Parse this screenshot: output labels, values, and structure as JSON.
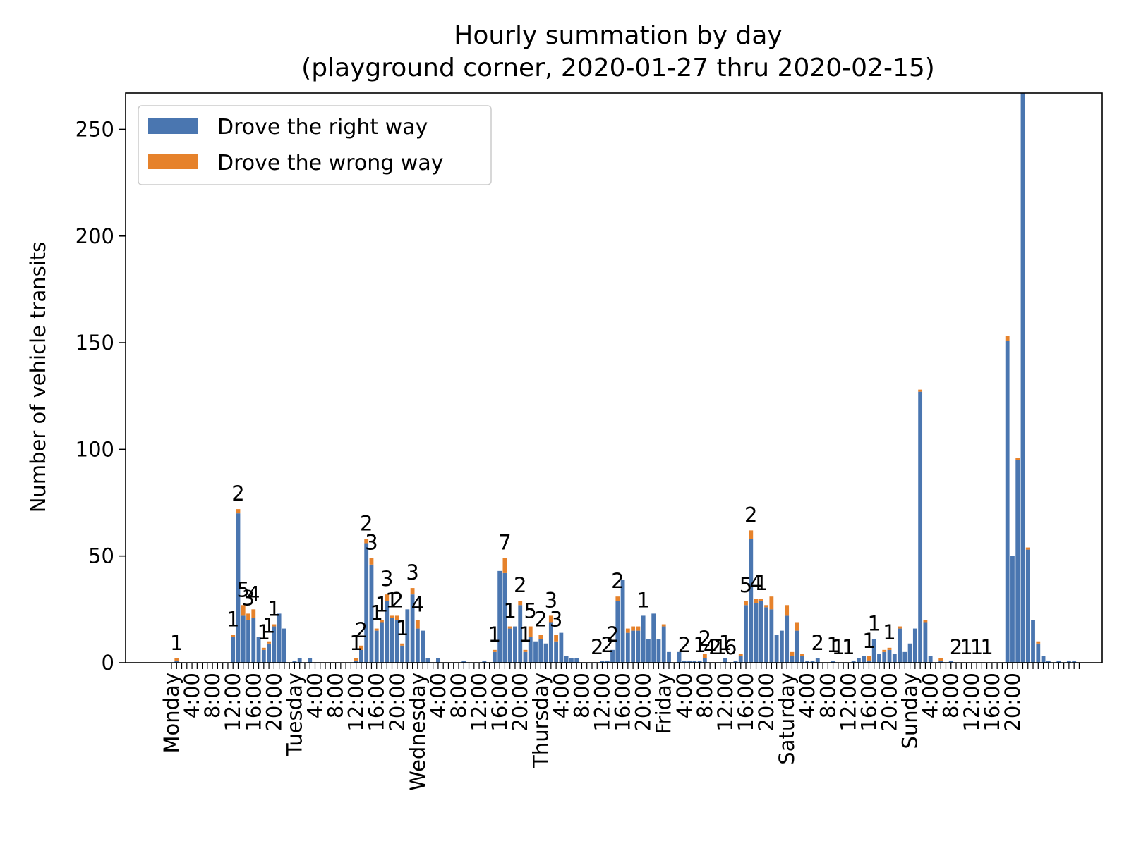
{
  "chart_data": {
    "type": "bar",
    "stacked": true,
    "title": "Hourly summation by day",
    "subtitle": "(playground corner, 2020-01-27 thru 2020-02-15)",
    "xlabel": "",
    "ylabel": "Number of vehicle transits",
    "ylim": [
      0,
      267
    ],
    "yticks": [
      0,
      50,
      100,
      150,
      200,
      250
    ],
    "grid": false,
    "legend_position": "top-left",
    "colors": {
      "right": "#4a76b0",
      "wrong": "#e6822b"
    },
    "days": [
      "Monday",
      "Tuesday",
      "Wednesday",
      "Thursday",
      "Friday",
      "Saturday",
      "Sunday"
    ],
    "hour_labels": [
      "4:00",
      "8:00",
      "12:00",
      "16:00",
      "20:00"
    ],
    "series": [
      {
        "name": "Drove the right way",
        "values": [
          0,
          1,
          0,
          0,
          0,
          0,
          0,
          0,
          0,
          0,
          0,
          0,
          12,
          70,
          22,
          20,
          21,
          12,
          6,
          9,
          17,
          23,
          16,
          0,
          1,
          2,
          0,
          2,
          0,
          0,
          0,
          0,
          0,
          0,
          0,
          0,
          1,
          6,
          56,
          46,
          15,
          19,
          29,
          21,
          20,
          8,
          25,
          32,
          16,
          15,
          2,
          0,
          2,
          0,
          0,
          0,
          0,
          1,
          0,
          0,
          0,
          1,
          0,
          5,
          43,
          42,
          16,
          17,
          27,
          5,
          12,
          10,
          11,
          9,
          19,
          10,
          14,
          3,
          2,
          2,
          0,
          0,
          0,
          0,
          1,
          1,
          6,
          29,
          39,
          14,
          15,
          15,
          22,
          11,
          23,
          11,
          17,
          5,
          0,
          5,
          1,
          1,
          1,
          1,
          2,
          0,
          0,
          0,
          2,
          0,
          1,
          3,
          27,
          58,
          28,
          29,
          26,
          25,
          13,
          15,
          22,
          3,
          15,
          3,
          1,
          1,
          2,
          0,
          0,
          1,
          0,
          0,
          0,
          1,
          2,
          3,
          1,
          11,
          4,
          5,
          6,
          4,
          16,
          5,
          9,
          16,
          127,
          19,
          3,
          0,
          1,
          0,
          1,
          0,
          0,
          0,
          0,
          0,
          0,
          0,
          0,
          0,
          0,
          151,
          50,
          95,
          267,
          53,
          20,
          9,
          3,
          1,
          0,
          1,
          0,
          1,
          1,
          0
        ]
      },
      {
        "name": "Drove the wrong way",
        "values": [
          0,
          1,
          0,
          0,
          0,
          0,
          0,
          0,
          0,
          0,
          0,
          0,
          1,
          2,
          5,
          3,
          4,
          0,
          1,
          1,
          1,
          0,
          0,
          0,
          0,
          0,
          0,
          0,
          0,
          0,
          0,
          0,
          0,
          0,
          0,
          0,
          1,
          2,
          2,
          3,
          1,
          1,
          3,
          1,
          2,
          1,
          0,
          3,
          4,
          0,
          0,
          0,
          0,
          0,
          0,
          0,
          0,
          0,
          0,
          0,
          0,
          0,
          0,
          1,
          0,
          7,
          1,
          0,
          2,
          1,
          5,
          0,
          2,
          0,
          3,
          3,
          0,
          0,
          0,
          0,
          0,
          0,
          0,
          0,
          0,
          0,
          0,
          2,
          0,
          2,
          2,
          2,
          0,
          0,
          0,
          0,
          1,
          0,
          0,
          0,
          0,
          0,
          0,
          0,
          2,
          0,
          0,
          0,
          0,
          0,
          0,
          1,
          2,
          4,
          2,
          1,
          1,
          6,
          0,
          0,
          5,
          2,
          4,
          1,
          0,
          0,
          0,
          0,
          0,
          0,
          0,
          0,
          0,
          0,
          0,
          0,
          2,
          0,
          0,
          1,
          1,
          0,
          1,
          0,
          0,
          0,
          1,
          1,
          0,
          0,
          1,
          0,
          0,
          0,
          0,
          0,
          0,
          0,
          0,
          0,
          0,
          0,
          0,
          2,
          0,
          1,
          0,
          1,
          0,
          1,
          0,
          0,
          0,
          0,
          0,
          0,
          0,
          0
        ]
      }
    ],
    "annotations": [
      {
        "index": 1,
        "text": "1"
      },
      {
        "index": 12,
        "text": "1"
      },
      {
        "index": 13,
        "text": "2"
      },
      {
        "index": 14,
        "text": "5"
      },
      {
        "index": 15,
        "text": "3"
      },
      {
        "index": 16,
        "text": "4"
      },
      {
        "index": 18,
        "text": "1"
      },
      {
        "index": 19,
        "text": "1"
      },
      {
        "index": 20,
        "text": "1"
      },
      {
        "index": 36,
        "text": "1"
      },
      {
        "index": 37,
        "text": "2"
      },
      {
        "index": 38,
        "text": "2"
      },
      {
        "index": 39,
        "text": "3"
      },
      {
        "index": 40,
        "text": "1"
      },
      {
        "index": 41,
        "text": "1"
      },
      {
        "index": 42,
        "text": "3"
      },
      {
        "index": 43,
        "text": "1"
      },
      {
        "index": 44,
        "text": "2"
      },
      {
        "index": 45,
        "text": "1"
      },
      {
        "index": 47,
        "text": "3"
      },
      {
        "index": 48,
        "text": "4"
      },
      {
        "index": 63,
        "text": "1"
      },
      {
        "index": 65,
        "text": "7"
      },
      {
        "index": 66,
        "text": "1"
      },
      {
        "index": 68,
        "text": "2"
      },
      {
        "index": 69,
        "text": "1"
      },
      {
        "index": 70,
        "text": "5"
      },
      {
        "index": 72,
        "text": "2"
      },
      {
        "index": 74,
        "text": "3"
      },
      {
        "index": 75,
        "text": "3"
      },
      {
        "index": 83,
        "text": "2"
      },
      {
        "index": 85,
        "text": "2"
      },
      {
        "index": 86,
        "text": "2"
      },
      {
        "index": 87,
        "text": "2"
      },
      {
        "index": 92,
        "text": "1"
      },
      {
        "index": 100,
        "text": "2"
      },
      {
        "index": 103,
        "text": "1"
      },
      {
        "index": 104,
        "text": "2"
      },
      {
        "index": 105,
        "text": "4"
      },
      {
        "index": 106,
        "text": "2"
      },
      {
        "index": 107,
        "text": "1"
      },
      {
        "index": 108,
        "text": "1"
      },
      {
        "index": 109,
        "text": "6"
      },
      {
        "index": 112,
        "text": "5"
      },
      {
        "index": 113,
        "text": "2"
      },
      {
        "index": 114,
        "text": "4"
      },
      {
        "index": 115,
        "text": "1"
      },
      {
        "index": 126,
        "text": "2"
      },
      {
        "index": 129,
        "text": "1"
      },
      {
        "index": 130,
        "text": "1"
      },
      {
        "index": 132,
        "text": "1"
      },
      {
        "index": 136,
        "text": "1"
      },
      {
        "index": 137,
        "text": "1"
      },
      {
        "index": 140,
        "text": "1"
      },
      {
        "index": 153,
        "text": "2"
      },
      {
        "index": 155,
        "text": "1"
      },
      {
        "index": 157,
        "text": "1"
      },
      {
        "index": 159,
        "text": "1"
      }
    ]
  }
}
